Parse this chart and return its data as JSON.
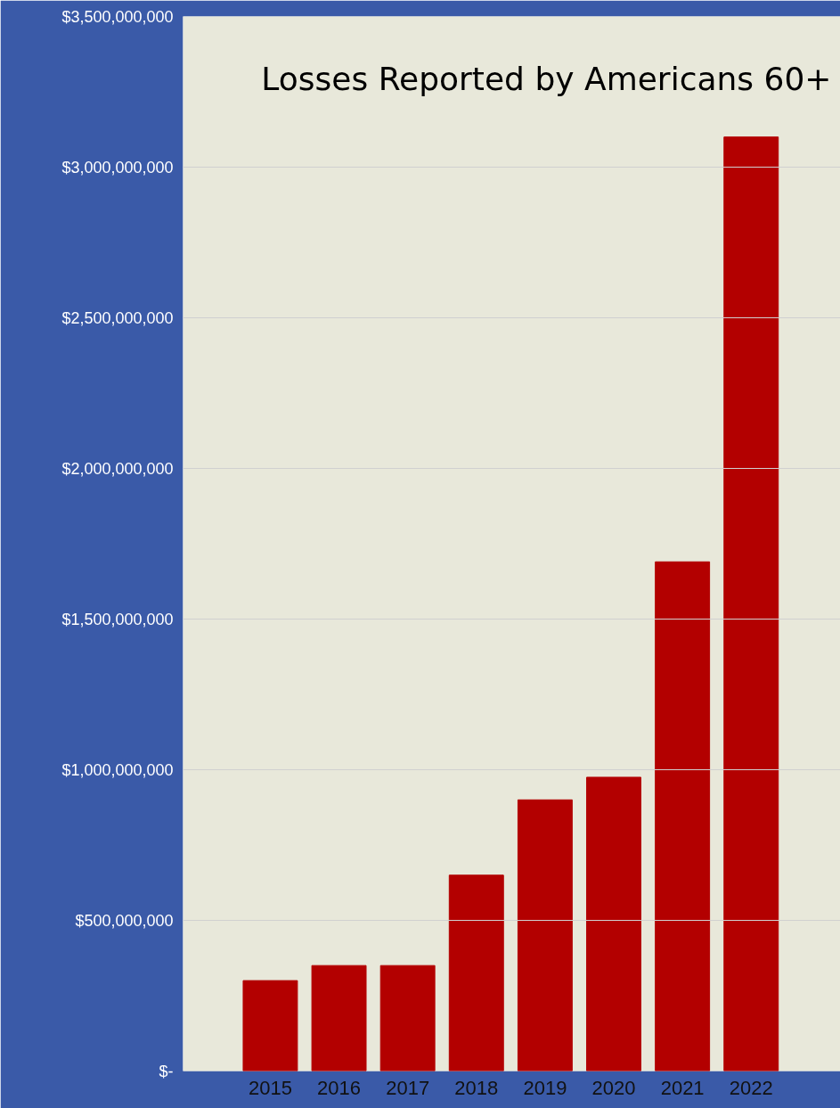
{
  "chart_data": {
    "type": "bar",
    "title": "Losses Reported by Americans 60+",
    "categories": [
      "2015",
      "2016",
      "2017",
      "2018",
      "2019",
      "2020",
      "2021",
      "2022"
    ],
    "values": [
      300000000,
      350000000,
      350000000,
      650000000,
      900000000,
      975000000,
      1690000000,
      3100000000
    ],
    "color": "#b30000",
    "ylim": [
      0,
      3500000000
    ],
    "yticks": [
      {
        "value": 0,
        "label": "$-"
      },
      {
        "value": 500000000,
        "label": "$500,000,000"
      },
      {
        "value": 1000000000,
        "label": "$1,000,000,000"
      },
      {
        "value": 1500000000,
        "label": "$1,500,000,000"
      },
      {
        "value": 2000000000,
        "label": "$2,000,000,000"
      },
      {
        "value": 2500000000,
        "label": "$2,500,000,000"
      },
      {
        "value": 3000000000,
        "label": "$3,000,000,000"
      },
      {
        "value": 3500000000,
        "label": "$3,500,000,000"
      }
    ],
    "grid": "y"
  }
}
